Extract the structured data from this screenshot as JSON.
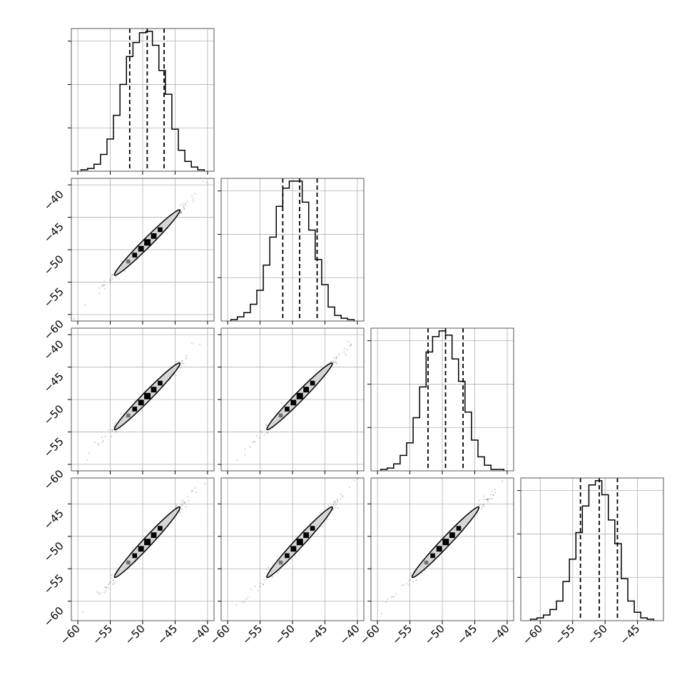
{
  "chart_data": {
    "type": "corner",
    "n_params": 4,
    "grid": true,
    "colors": {
      "line": "#000000",
      "grid": "#b0b0b0",
      "fill": "#d6d6d6",
      "points": "#555555"
    },
    "params": [
      {
        "range": [
          -61,
          -39
        ],
        "quantiles": [
          -52.0,
          -49.3,
          -46.7
        ],
        "hist_x": [
          -59,
          -58,
          -57,
          -56,
          -55,
          -54,
          -53,
          -52,
          -51,
          -50,
          -49,
          -48,
          -47,
          -46,
          -45,
          -44,
          -43,
          -42,
          -41
        ],
        "hist_y": [
          0.01,
          0.02,
          0.05,
          0.12,
          0.23,
          0.4,
          0.62,
          0.82,
          0.92,
          0.99,
          1.0,
          0.9,
          0.72,
          0.55,
          0.3,
          0.15,
          0.07,
          0.03,
          0.01
        ]
      },
      {
        "range": [
          -61,
          -39
        ],
        "quantiles": [
          -51.5,
          -48.9,
          -46.2
        ],
        "hist_x": [
          -59,
          -58,
          -57,
          -56,
          -55,
          -54,
          -53,
          -52,
          -51,
          -50,
          -49,
          -48,
          -47,
          -46,
          -45,
          -44,
          -43,
          -42,
          -41
        ],
        "hist_y": [
          0.01,
          0.03,
          0.06,
          0.12,
          0.22,
          0.4,
          0.6,
          0.82,
          0.95,
          1.0,
          1.0,
          0.85,
          0.65,
          0.44,
          0.26,
          0.1,
          0.04,
          0.02,
          0.01
        ]
      },
      {
        "range": [
          -61,
          -39
        ],
        "quantiles": [
          -52.2,
          -49.5,
          -46.8
        ],
        "hist_x": [
          -59,
          -58,
          -57,
          -56,
          -55,
          -54,
          -53,
          -52,
          -51,
          -50,
          -49,
          -48,
          -47,
          -46,
          -45,
          -44,
          -43,
          -42,
          -41
        ],
        "hist_y": [
          0.01,
          0.02,
          0.05,
          0.11,
          0.2,
          0.38,
          0.6,
          0.85,
          0.96,
          1.0,
          0.97,
          0.8,
          0.64,
          0.42,
          0.22,
          0.1,
          0.04,
          0.01,
          0.01
        ]
      },
      {
        "range": [
          -63,
          -41
        ],
        "quantiles": [
          -53.8,
          -50.9,
          -48.1
        ],
        "hist_x": [
          -61,
          -60,
          -59,
          -58,
          -57,
          -56,
          -55,
          -54,
          -53,
          -52,
          -51,
          -50,
          -49,
          -48,
          -47,
          -46,
          -45,
          -44,
          -43
        ],
        "hist_y": [
          0.01,
          0.02,
          0.04,
          0.08,
          0.14,
          0.28,
          0.44,
          0.63,
          0.82,
          0.97,
          1.0,
          0.9,
          0.72,
          0.55,
          0.3,
          0.14,
          0.06,
          0.02,
          0.01
        ]
      }
    ],
    "xtick_values": [
      [
        -60,
        -55,
        -50,
        -45,
        -40
      ],
      [
        -60,
        -55,
        -50,
        -45,
        -40
      ],
      [
        -60,
        -55,
        -50,
        -45,
        -40
      ],
      [
        -60,
        -55,
        -50,
        -45
      ]
    ],
    "xtick_labels": [
      [
        "−60",
        "−55",
        "−50",
        "−45",
        "−40"
      ],
      [
        "−60",
        "−55",
        "−50",
        "−45",
        "−40"
      ],
      [
        "−60",
        "−55",
        "−50",
        "−45",
        "−40"
      ],
      [
        "−60",
        "−55",
        "−50",
        "−45"
      ]
    ],
    "ytick_values": [
      [],
      [
        -60,
        -55,
        -50,
        -45,
        -40
      ],
      [
        -60,
        -55,
        -50,
        -45,
        -40
      ],
      [
        -60,
        -55,
        -50,
        -45
      ]
    ],
    "ytick_labels": [
      [],
      [
        "−60",
        "−55",
        "−50",
        "−45",
        "−40"
      ],
      [
        "−60",
        "−55",
        "−50",
        "−45",
        "−40"
      ],
      [
        "−60",
        "−55",
        "−50",
        "−45"
      ]
    ],
    "xlabel": "",
    "ylabel": ""
  }
}
